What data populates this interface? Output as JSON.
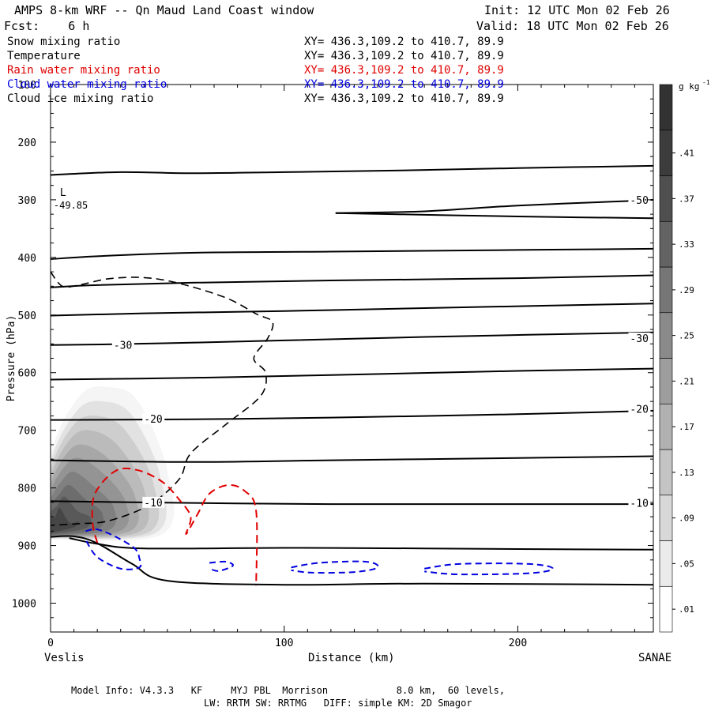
{
  "header": {
    "title": "AMPS 8-km WRF -- Qn Maud Land Coast window",
    "forecast": "Fcst:    6 h",
    "init": "Init: 12 UTC Mon 02 Feb 26",
    "valid": "Valid: 18 UTC Mon 02 Feb 26"
  },
  "legend": {
    "items": [
      {
        "label": "Snow mixing ratio",
        "xy": "XY= 436.3,109.2 to 410.7, 89.9",
        "color": "#000000"
      },
      {
        "label": "Temperature",
        "xy": "XY= 436.3,109.2 to 410.7, 89.9",
        "color": "#000000"
      },
      {
        "label": "Rain water mixing ratio",
        "xy": "XY= 436.3,109.2 to 410.7, 89.9",
        "color": "#e00000"
      },
      {
        "label": "Cloud water mixing ratio",
        "xy": "XY= 436.3,109.2 to 410.7, 89.9",
        "color": "#0000e0"
      },
      {
        "label": "Cloud ice mixing ratio",
        "xy": "XY= 436.3,109.2 to 410.7, 89.9",
        "color": "#000000"
      }
    ]
  },
  "footer": {
    "model_info": "Model Info: V4.3.3   KF     MYJ PBL  Morrison            8.0 km,  60 levels,",
    "physics": "LW: RRTM SW: RRTMG   DIFF: simple KM: 2D Smagor"
  },
  "chart_data": {
    "type": "contour",
    "title": "AMPS 8-km WRF -- Qn Maud Land Coast window",
    "xlabel": "Distance (km)",
    "ylabel": "Pressure (hPa)",
    "xlim": [
      0,
      258
    ],
    "ylim": [
      1050,
      100
    ],
    "x_ticks": [
      0,
      100,
      200
    ],
    "y_ticks": [
      100,
      200,
      300,
      400,
      500,
      600,
      700,
      800,
      900,
      1000
    ],
    "x_endpoints": {
      "left": "Veslis",
      "right": "SANAE"
    },
    "colorbar": {
      "units": "g kg",
      "units_exp": "-1",
      "ticks": [
        ".01",
        ".05",
        ".09",
        ".13",
        ".17",
        ".21",
        ".25",
        ".29",
        ".33",
        ".37",
        ".41"
      ]
    },
    "low_marker": {
      "label": "L",
      "value": "-49.85",
      "x": 2,
      "p": 307
    },
    "temperature_labels": [
      {
        "text": "-50",
        "x": 248,
        "p": 300
      },
      {
        "text": "-30",
        "x": 27,
        "p": 552
      },
      {
        "text": "-30",
        "x": 248,
        "p": 540
      },
      {
        "text": "-20",
        "x": 40,
        "p": 680
      },
      {
        "text": "-20",
        "x": 248,
        "p": 663
      },
      {
        "text": "-10",
        "x": 40,
        "p": 825
      },
      {
        "text": "-10",
        "x": 248,
        "p": 826
      }
    ],
    "temperature_isotherms": [
      [
        [
          0,
          257
        ],
        [
          30,
          252
        ],
        [
          60,
          254
        ],
        [
          100,
          252
        ],
        [
          150,
          249
        ],
        [
          200,
          245
        ],
        [
          258,
          241
        ]
      ],
      [
        [
          122,
          323
        ],
        [
          160,
          320
        ],
        [
          200,
          310
        ],
        [
          248,
          302
        ],
        [
          258,
          300
        ]
      ],
      [
        [
          122,
          323
        ],
        [
          160,
          326
        ],
        [
          200,
          329
        ],
        [
          258,
          332
        ]
      ],
      [
        [
          0,
          403
        ],
        [
          20,
          398
        ],
        [
          60,
          392
        ],
        [
          120,
          390
        ],
        [
          200,
          387
        ],
        [
          258,
          385
        ]
      ],
      [
        [
          0,
          452
        ],
        [
          20,
          448
        ],
        [
          60,
          444
        ],
        [
          120,
          440
        ],
        [
          200,
          436
        ],
        [
          258,
          431
        ]
      ],
      [
        [
          0,
          501
        ],
        [
          40,
          497
        ],
        [
          100,
          493
        ],
        [
          160,
          488
        ],
        [
          258,
          480
        ]
      ],
      [
        [
          0,
          552
        ],
        [
          22,
          551
        ],
        [
          60,
          548
        ],
        [
          100,
          544
        ],
        [
          160,
          538
        ],
        [
          258,
          530
        ]
      ],
      [
        [
          0,
          612
        ],
        [
          60,
          609
        ],
        [
          120,
          604
        ],
        [
          200,
          597
        ],
        [
          258,
          593
        ]
      ],
      [
        [
          0,
          682
        ],
        [
          60,
          681
        ],
        [
          120,
          678
        ],
        [
          200,
          672
        ],
        [
          258,
          666
        ]
      ],
      [
        [
          0,
          752
        ],
        [
          60,
          755
        ],
        [
          120,
          752
        ],
        [
          200,
          748
        ],
        [
          258,
          745
        ]
      ],
      [
        [
          0,
          823
        ],
        [
          60,
          826
        ],
        [
          120,
          828
        ],
        [
          200,
          828
        ],
        [
          258,
          828
        ]
      ],
      [
        [
          8,
          887
        ],
        [
          20,
          897
        ],
        [
          40,
          905
        ],
        [
          100,
          904
        ],
        [
          160,
          905
        ],
        [
          200,
          906
        ],
        [
          258,
          907
        ]
      ],
      [
        [
          0,
          885
        ],
        [
          10,
          884
        ],
        [
          20,
          896
        ],
        [
          35,
          932
        ],
        [
          50,
          961
        ],
        [
          100,
          968
        ],
        [
          160,
          966
        ],
        [
          258,
          968
        ]
      ]
    ],
    "cloud_ice_contour": [
      [
        0,
        425
      ],
      [
        5,
        450
      ],
      [
        12,
        448
      ],
      [
        25,
        437
      ],
      [
        40,
        435
      ],
      [
        55,
        445
      ],
      [
        75,
        470
      ],
      [
        88,
        498
      ],
      [
        95,
        512
      ],
      [
        93,
        540
      ],
      [
        87,
        575
      ],
      [
        92,
        600
      ],
      [
        90,
        640
      ],
      [
        75,
        690
      ],
      [
        60,
        740
      ],
      [
        55,
        785
      ],
      [
        42,
        830
      ],
      [
        25,
        857
      ],
      [
        12,
        862
      ],
      [
        0,
        865
      ]
    ],
    "rain_contours": [
      [
        [
          20,
          895
        ],
        [
          18,
          860
        ],
        [
          19,
          810
        ],
        [
          28,
          770
        ],
        [
          38,
          770
        ],
        [
          48,
          790
        ],
        [
          55,
          820
        ],
        [
          60,
          850
        ],
        [
          58,
          880
        ],
        [
          63,
          845
        ],
        [
          68,
          810
        ],
        [
          76,
          795
        ],
        [
          83,
          805
        ],
        [
          88,
          840
        ],
        [
          88,
          970
        ]
      ]
    ],
    "cloud_water_contours": [
      [
        [
          15,
          875
        ],
        [
          20,
          872
        ],
        [
          28,
          885
        ],
        [
          36,
          905
        ],
        [
          38,
          922
        ],
        [
          38,
          938
        ],
        [
          30,
          940
        ],
        [
          20,
          920
        ],
        [
          15,
          890
        ]
      ],
      [
        [
          68,
          930
        ],
        [
          75,
          928
        ],
        [
          78,
          935
        ],
        [
          72,
          944
        ],
        [
          68,
          940
        ]
      ],
      [
        [
          103,
          938
        ],
        [
          115,
          930
        ],
        [
          135,
          928
        ],
        [
          140,
          938
        ],
        [
          130,
          946
        ],
        [
          112,
          947
        ],
        [
          103,
          943
        ]
      ],
      [
        [
          160,
          940
        ],
        [
          175,
          932
        ],
        [
          205,
          932
        ],
        [
          215,
          940
        ],
        [
          205,
          948
        ],
        [
          175,
          950
        ],
        [
          160,
          945
        ]
      ]
    ],
    "snow_shading": [
      {
        "level": 0.01,
        "x0": 0,
        "x1": 50,
        "xc": 25,
        "ptop": 625,
        "pbot": 890
      },
      {
        "level": 0.05,
        "x0": 0,
        "x1": 47,
        "xc": 23,
        "ptop": 650,
        "pbot": 888
      },
      {
        "level": 0.09,
        "x0": 0,
        "x1": 44,
        "xc": 20,
        "ptop": 675,
        "pbot": 887
      },
      {
        "level": 0.13,
        "x0": 0,
        "x1": 40,
        "xc": 17,
        "ptop": 700,
        "pbot": 886
      },
      {
        "level": 0.17,
        "x0": 0,
        "x1": 36,
        "xc": 14,
        "ptop": 725,
        "pbot": 885
      },
      {
        "level": 0.21,
        "x0": 0,
        "x1": 32,
        "xc": 12,
        "ptop": 748,
        "pbot": 884
      },
      {
        "level": 0.25,
        "x0": 0,
        "x1": 27,
        "xc": 10,
        "ptop": 772,
        "pbot": 883
      },
      {
        "level": 0.29,
        "x0": 0,
        "x1": 22,
        "xc": 8,
        "ptop": 795,
        "pbot": 882
      },
      {
        "level": 0.33,
        "x0": 0,
        "x1": 17,
        "xc": 6,
        "ptop": 815,
        "pbot": 880
      },
      {
        "level": 0.37,
        "x0": 0,
        "x1": 12,
        "xc": 4,
        "ptop": 835,
        "pbot": 878
      }
    ],
    "terrain": [
      [
        0,
        888
      ],
      [
        10,
        884
      ],
      [
        20,
        897
      ],
      [
        35,
        932
      ],
      [
        50,
        962
      ],
      [
        100,
        968
      ],
      [
        160,
        966
      ],
      [
        258,
        970
      ]
    ]
  }
}
